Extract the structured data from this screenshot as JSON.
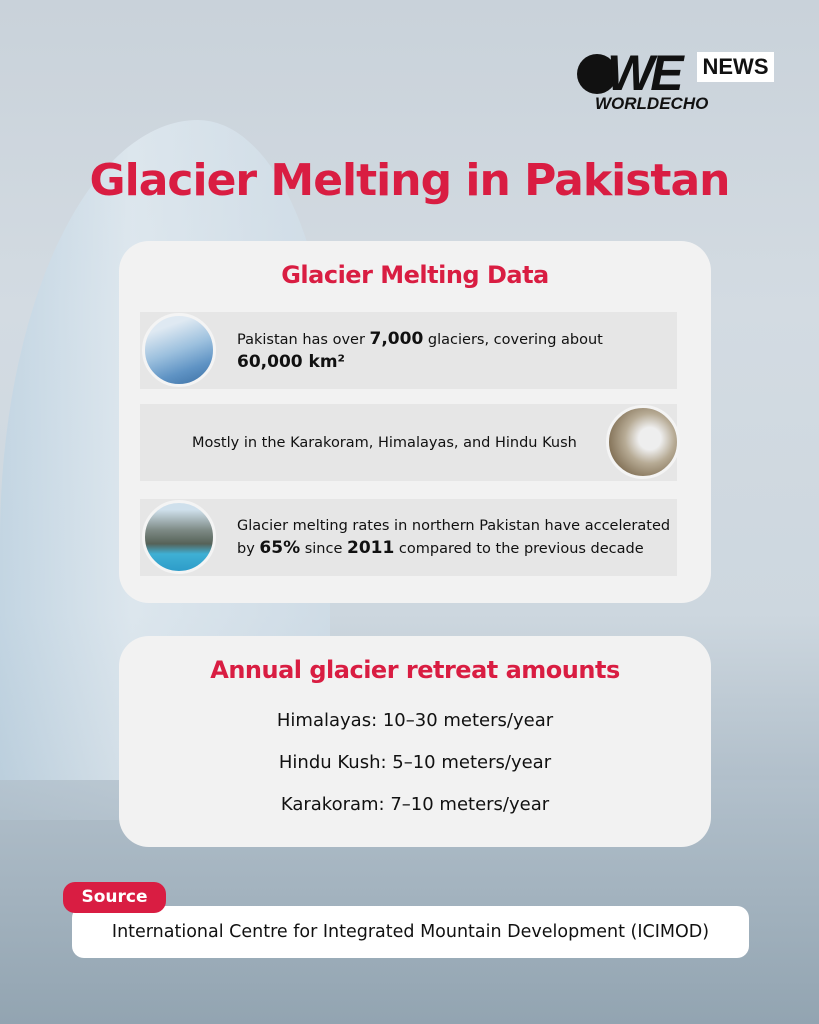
{
  "logo": {
    "text": "WE",
    "badge": "NEWS",
    "subtext": "WORLDECHO"
  },
  "title": "Glacier Melting in Pakistan",
  "data_card": {
    "heading": "Glacier Melting Data",
    "rows": [
      {
        "segments": [
          "Pakistan has over ",
          "7,000",
          " glaciers, covering about ",
          "60,000 km²"
        ],
        "image": "glacier-photo"
      },
      {
        "segments": [
          "Mostly in the Karakoram, Himalayas, and Hindu Kush"
        ],
        "image": "satellite-map-photo"
      },
      {
        "segments": [
          "Glacier melting rates in northern Pakistan have accelerated by ",
          "65%",
          " since ",
          "2011",
          " compared to the previous decade"
        ],
        "image": "mountain-lake-photo"
      }
    ]
  },
  "retreat_card": {
    "heading": "Annual glacier retreat amounts",
    "items": [
      "Himalayas: 10–30 meters/year",
      "Hindu Kush: 5–10 meters/year",
      "Karakoram: 7–10 meters/year"
    ]
  },
  "source": {
    "label": "Source",
    "text": "International Centre for Integrated Mountain Development (ICIMOD)"
  },
  "colors": {
    "accent": "#d91d42",
    "card": "#f2f2f2",
    "row": "#e6e6e6"
  }
}
